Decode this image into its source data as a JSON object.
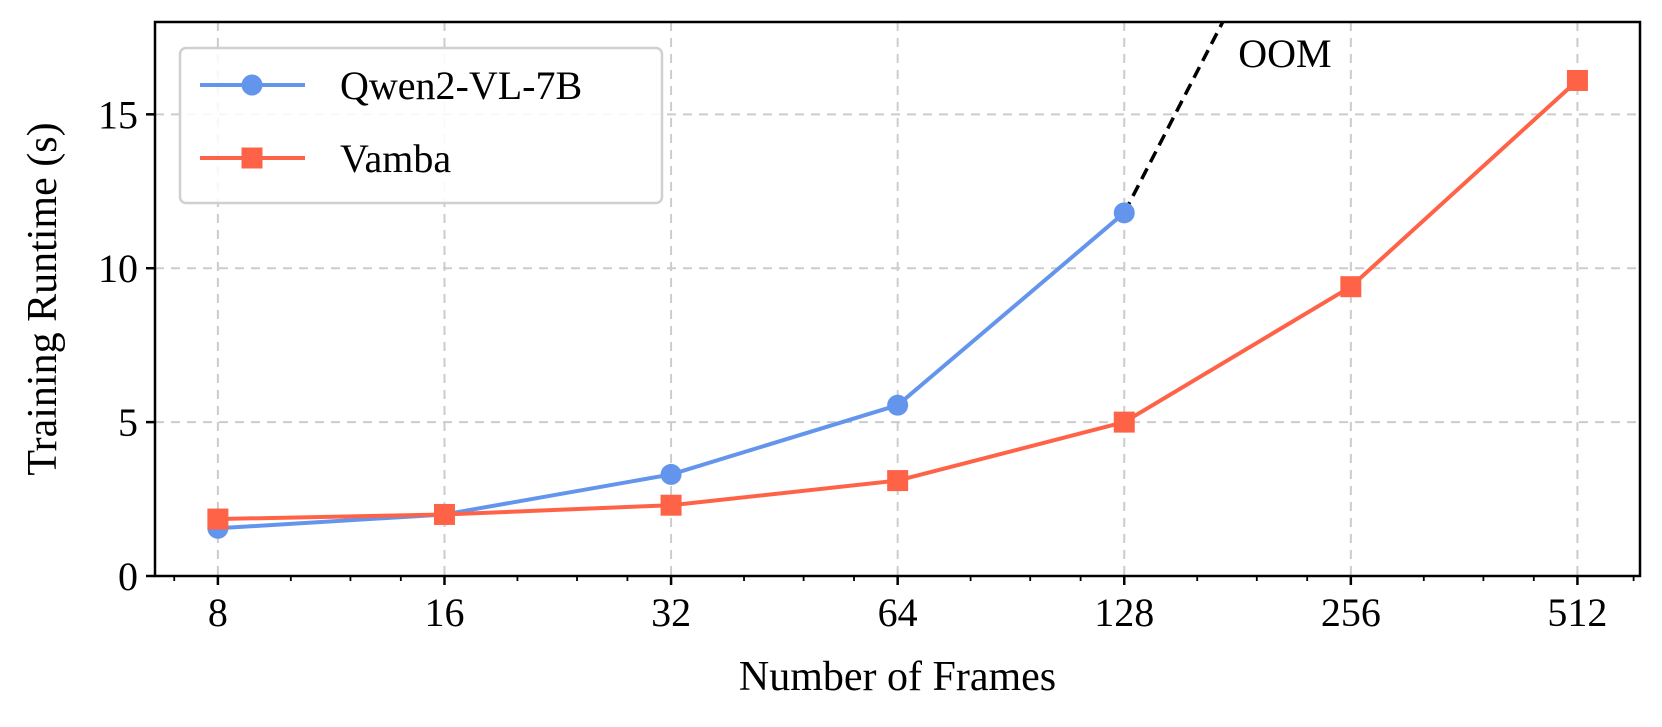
{
  "chart_data": {
    "type": "line",
    "xlabel": "Number of Frames",
    "ylabel": "Training Runtime (s)",
    "xscale": "log2",
    "xlim": [
      6.6,
      620
    ],
    "ylim": [
      0,
      18
    ],
    "grid": true,
    "legend_position": "top-left",
    "x_ticks": [
      8,
      16,
      32,
      64,
      128,
      256,
      512
    ],
    "x_tick_labels": [
      "8",
      "16",
      "32",
      "64",
      "128",
      "256",
      "512"
    ],
    "y_ticks": [
      0,
      5,
      10,
      15
    ],
    "y_tick_labels": [
      "0",
      "5",
      "10",
      "15"
    ],
    "series": [
      {
        "name": "Qwen2-VL-7B",
        "color": "#6495ed",
        "marker": "circle",
        "x": [
          8,
          16,
          32,
          64,
          128
        ],
        "y": [
          1.55,
          2.0,
          3.3,
          5.55,
          11.8
        ]
      },
      {
        "name": "Vamba",
        "color": "#ff6347",
        "marker": "square",
        "x": [
          8,
          16,
          32,
          64,
          128,
          256,
          512
        ],
        "y": [
          1.85,
          2.0,
          2.3,
          3.1,
          5.0,
          9.4,
          16.1
        ]
      }
    ],
    "extrapolation": {
      "series": "Qwen2-VL-7B",
      "style": "dashed",
      "color": "#000000",
      "from": [
        128,
        11.8
      ],
      "to": [
        173,
        18
      ]
    },
    "annotations": [
      {
        "text": "OOM",
        "x": 205,
        "y": 17.0
      }
    ]
  }
}
